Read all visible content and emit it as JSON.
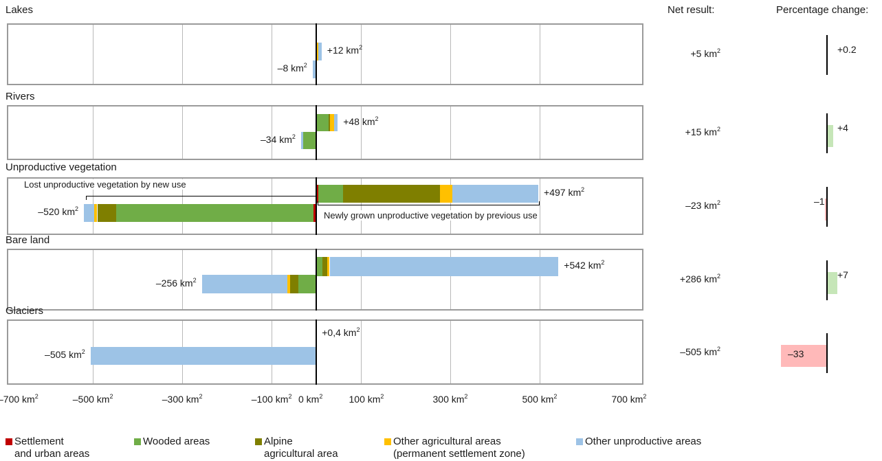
{
  "headers": {
    "net": "Net result:",
    "pct": "Percentage change:"
  },
  "chart_data": {
    "type": "bar",
    "orientation": "horizontal-diverging-stacked",
    "x_unit": "km²",
    "xlim": [
      -700,
      700
    ],
    "x_ticks": [
      -700,
      -500,
      -300,
      -100,
      0,
      100,
      300,
      500,
      700
    ],
    "x_tick_labels": [
      "–700 km²",
      "–500 km²",
      "–300 km²",
      "–100 km²",
      "0 km²",
      "100 km²",
      "300 km²",
      "500 km²",
      "700 km²"
    ],
    "categories_legend": [
      {
        "key": "settlement",
        "name": "Settlement and urban areas",
        "line1": "Settlement",
        "line2": "and urban areas",
        "color": "#c00000"
      },
      {
        "key": "wooded",
        "name": "Wooded areas",
        "line1": "Wooded areas",
        "line2": "",
        "color": "#70ad47"
      },
      {
        "key": "alpine",
        "name": "Alpine agricultural area",
        "line1": "Alpine",
        "line2": "agricultural area",
        "color": "#7f7f00"
      },
      {
        "key": "otheragri",
        "name": "Other agricultural areas (permanent settlement zone)",
        "line1": "Other agricultural areas",
        "line2": "(permanent settlement zone)",
        "color": "#ffc000"
      },
      {
        "key": "unprod",
        "name": "Other unproductive areas",
        "line1": "Other unproductive areas",
        "line2": "",
        "color": "#9dc3e6"
      }
    ],
    "panels": [
      {
        "title": "Lakes",
        "gain_total": 12,
        "gain_label": "+12 km",
        "loss_total": -8,
        "loss_label": "–8 km",
        "gain": [
          {
            "k": "wooded",
            "v": 2
          },
          {
            "k": "otheragri",
            "v": 3
          },
          {
            "k": "unprod",
            "v": 7
          }
        ],
        "loss": [
          {
            "k": "unprod",
            "v": 8
          }
        ],
        "net_label": "+5 km",
        "pct": 0.2,
        "pct_label": "+0.2"
      },
      {
        "title": "Rivers",
        "gain_total": 48,
        "gain_label": "+48 km",
        "loss_total": -34,
        "loss_label": "–34 km",
        "gain": [
          {
            "k": "wooded",
            "v": 28
          },
          {
            "k": "alpine",
            "v": 3
          },
          {
            "k": "otheragri",
            "v": 9
          },
          {
            "k": "unprod",
            "v": 8
          }
        ],
        "loss": [
          {
            "k": "wooded",
            "v": 29
          },
          {
            "k": "unprod",
            "v": 5
          }
        ],
        "net_label": "+15 km",
        "pct": 4,
        "pct_label": "+4"
      },
      {
        "title": "Unproductive vegetation",
        "gain_total": 497,
        "gain_label": "+497 km",
        "loss_total": -520,
        "loss_label": "–520 km",
        "gain": [
          {
            "k": "settlement",
            "v": 5
          },
          {
            "k": "wooded",
            "v": 55
          },
          {
            "k": "alpine",
            "v": 217
          },
          {
            "k": "otheragri",
            "v": 28
          },
          {
            "k": "unprod",
            "v": 192
          }
        ],
        "loss": [
          {
            "k": "settlement",
            "v": 6
          },
          {
            "k": "wooded",
            "v": 441
          },
          {
            "k": "alpine",
            "v": 43
          },
          {
            "k": "otheragri",
            "v": 7
          },
          {
            "k": "unprod",
            "v": 23
          }
        ],
        "net_label": "–23 km",
        "pct": -1,
        "pct_label": "–1",
        "annotation_loss": "Lost unproductive vegetation by new use",
        "annotation_gain": "Newly grown unproductive vegetation by previous use"
      },
      {
        "title": "Bare land",
        "gain_total": 542,
        "gain_label": "+542 km",
        "loss_total": -256,
        "loss_label": "–256 km",
        "gain": [
          {
            "k": "wooded",
            "v": 14
          },
          {
            "k": "alpine",
            "v": 10
          },
          {
            "k": "otheragri",
            "v": 6
          },
          {
            "k": "unprod",
            "v": 512
          }
        ],
        "loss": [
          {
            "k": "wooded",
            "v": 40
          },
          {
            "k": "alpine",
            "v": 18
          },
          {
            "k": "otheragri",
            "v": 6
          },
          {
            "k": "unprod",
            "v": 192
          }
        ],
        "net_label": "+286 km",
        "pct": 7,
        "pct_label": "+7"
      },
      {
        "title": "Glaciers",
        "gain_total": 0.4,
        "gain_label": "+0,4 km",
        "loss_total": -505,
        "loss_label": "–505 km",
        "gain": [],
        "loss": [
          {
            "k": "unprod",
            "v": 505
          }
        ],
        "net_label": "–505 km",
        "pct": -33,
        "pct_label": "–33"
      }
    ]
  }
}
